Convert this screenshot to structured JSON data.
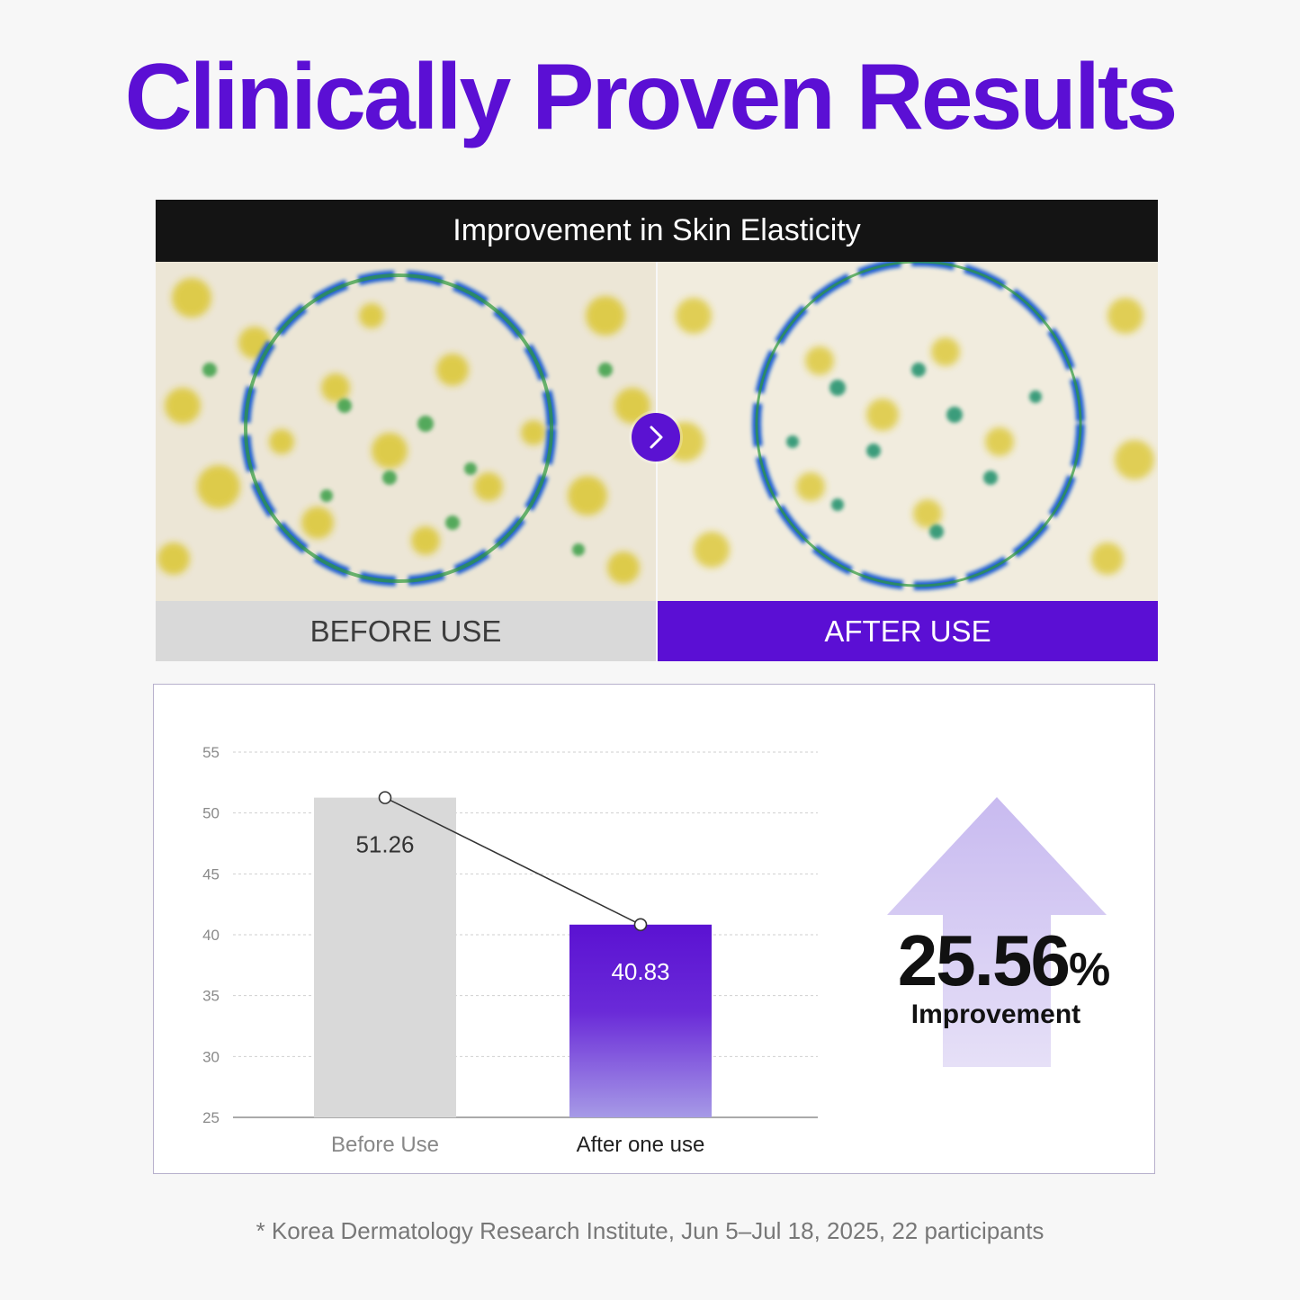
{
  "headline": "Clinically Proven Results",
  "comparison": {
    "title": "Improvement in Skin Elasticity",
    "before_label": "BEFORE USE",
    "after_label": "AFTER USE",
    "arrow_icon": "chevron-right-icon"
  },
  "chart_data": {
    "type": "bar",
    "categories": [
      "Before Use",
      "After one use"
    ],
    "values": [
      51.26,
      40.83
    ],
    "value_labels": [
      "51.26",
      "40.83"
    ],
    "ylim": [
      25,
      55
    ],
    "yticks": [
      25,
      30,
      35,
      40,
      45,
      50,
      55
    ],
    "grid": true,
    "connector_line": true,
    "title": "",
    "xlabel": "",
    "ylabel": "",
    "colors": [
      "#d9d9d9",
      "#5b12d2"
    ]
  },
  "improvement": {
    "value": "25.56",
    "unit": "%",
    "label": "Improvement",
    "arrow_color": "#cfc3f2"
  },
  "footnote": "* Korea Dermatology Research Institute, Jun 5–Jul 18, 2025, 22 participants",
  "colors": {
    "brand_purple": "#5b0fd4",
    "header_black": "#141414",
    "before_gray": "#d9d9d9"
  }
}
